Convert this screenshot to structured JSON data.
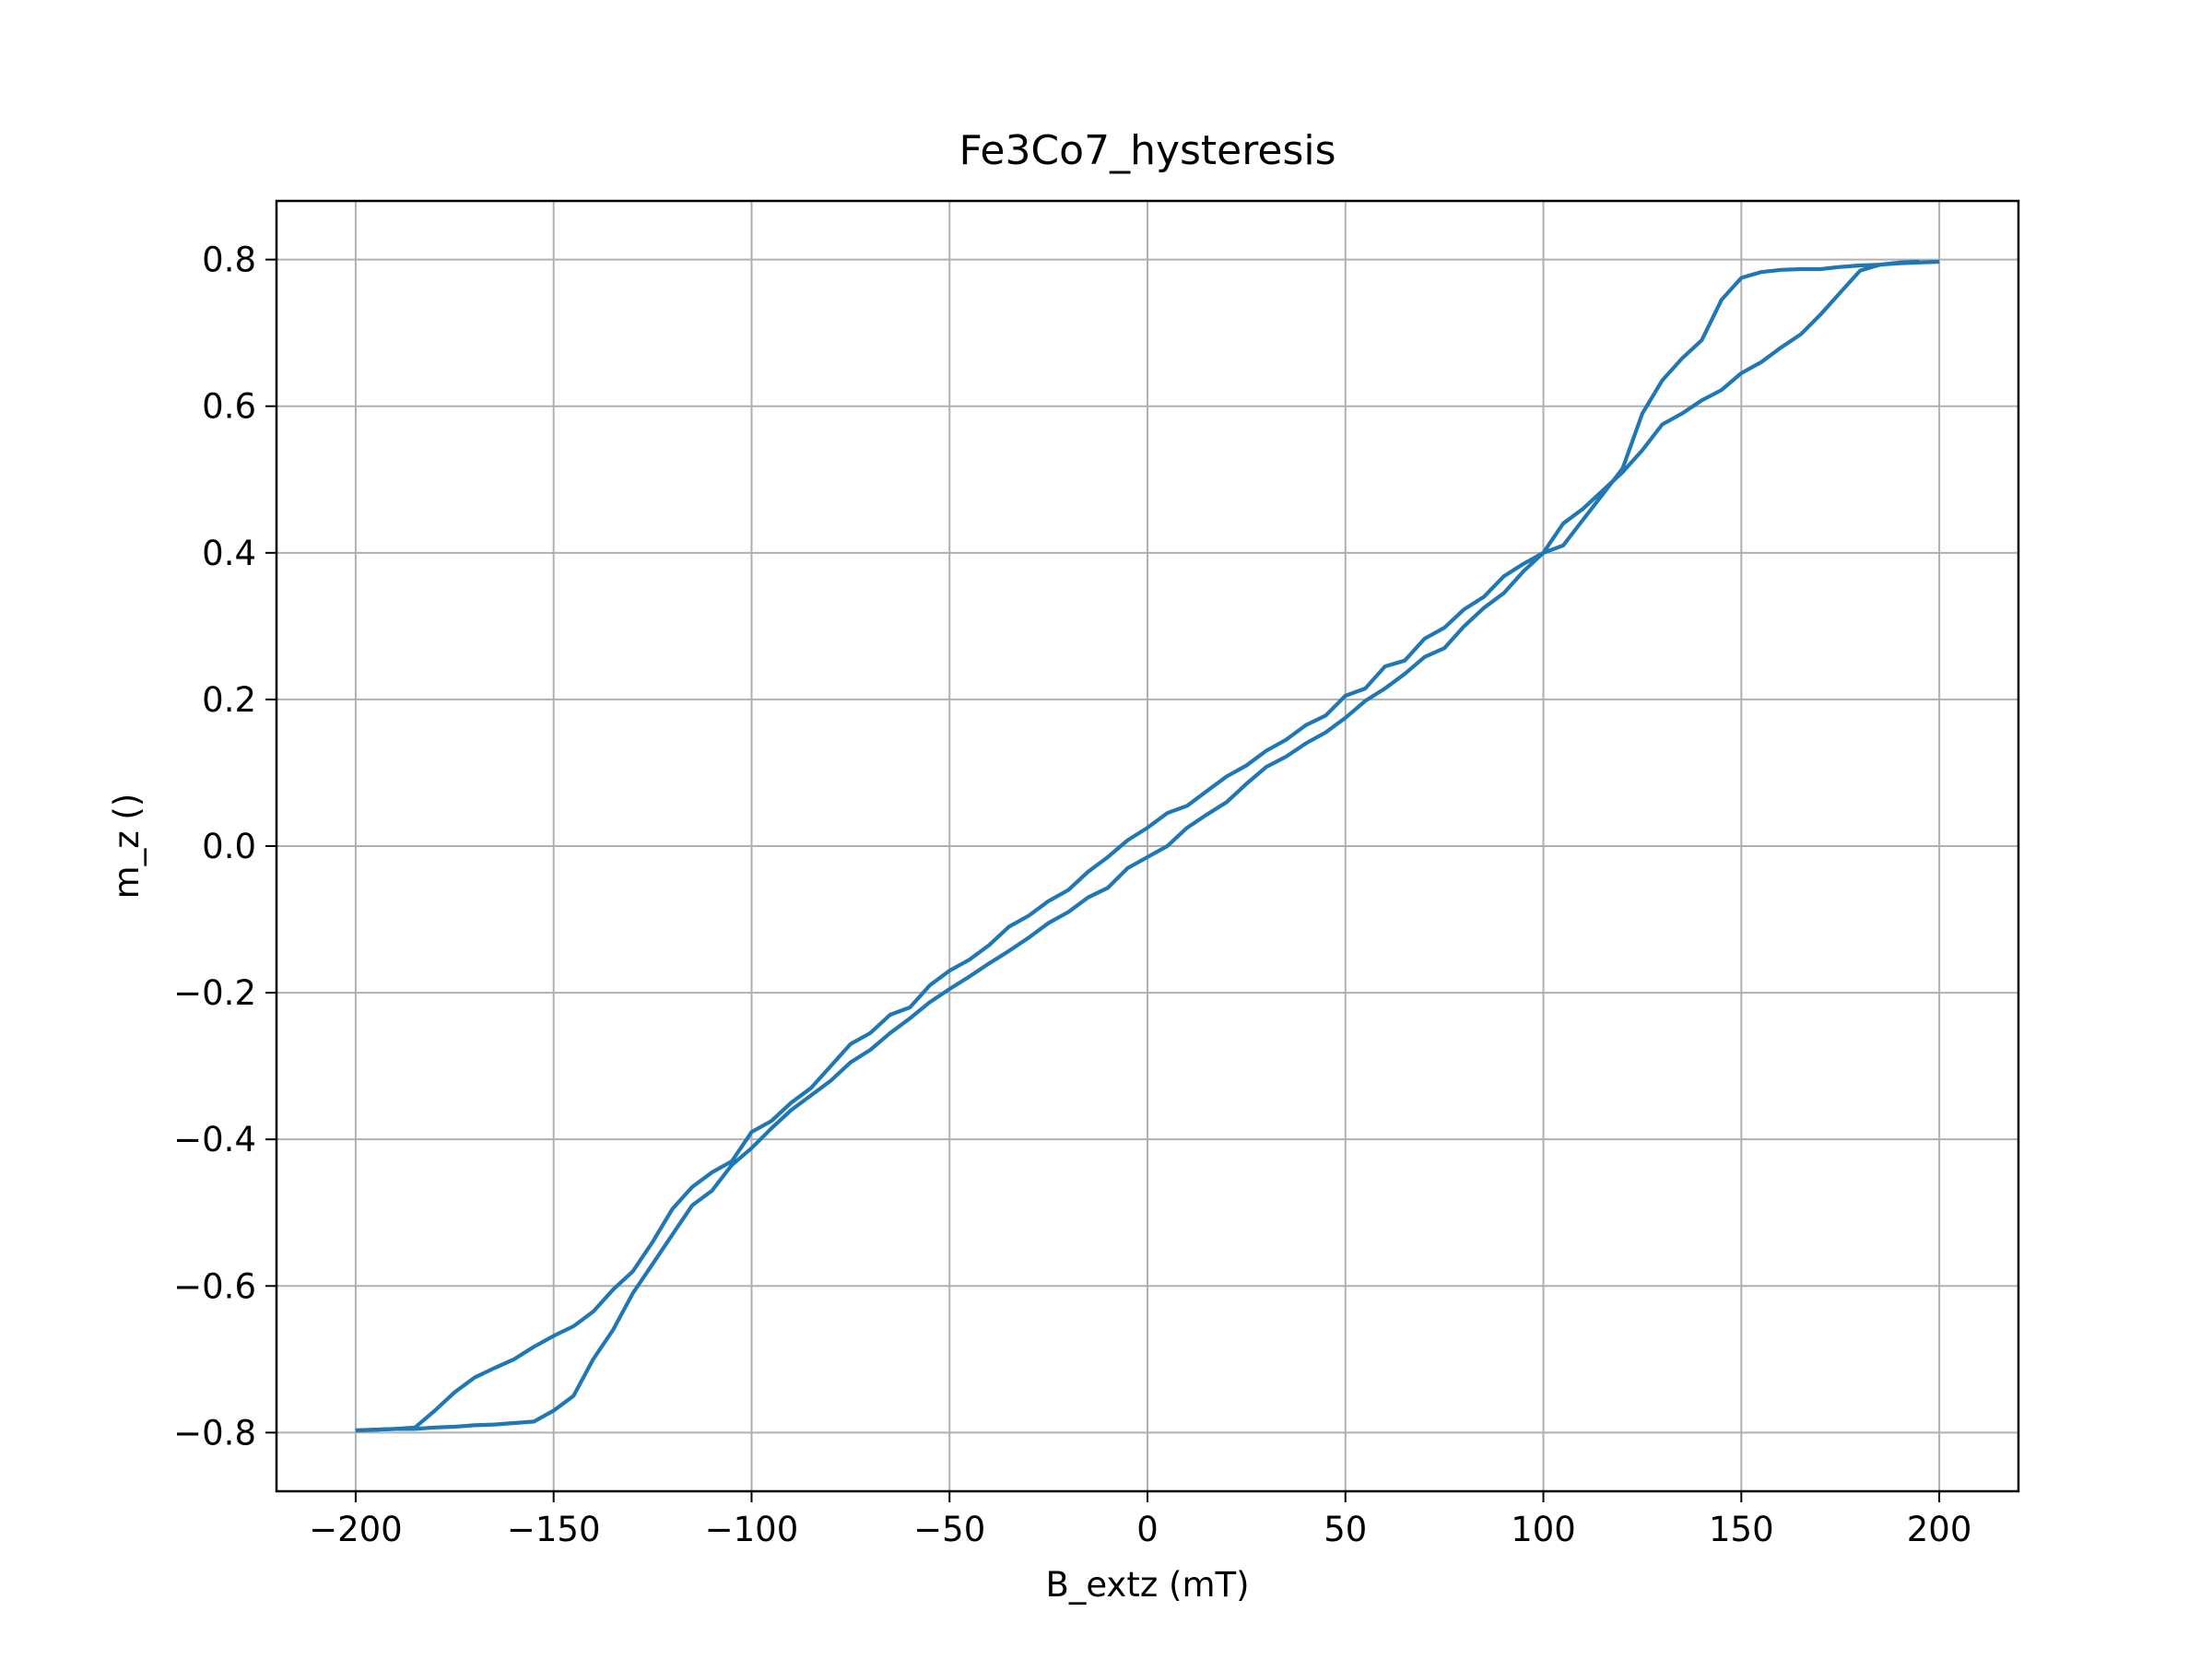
{
  "chart_data": {
    "type": "line",
    "title": "Fe3Co7_hysteresis",
    "xlabel": "B_extz (mT)",
    "ylabel": "m_z ()",
    "xlim": [
      -220,
      220
    ],
    "ylim": [
      -0.88,
      0.88
    ],
    "grid": true,
    "line_color": "#1f77b4",
    "grid_color": "#b0b0b0",
    "x_ticks": [
      -200,
      -150,
      -100,
      -50,
      0,
      50,
      100,
      150,
      200
    ],
    "x_tick_labels": [
      "−200",
      "−150",
      "−100",
      "−50",
      "0",
      "50",
      "100",
      "150",
      "200"
    ],
    "y_ticks": [
      0.8,
      0.6,
      0.4,
      0.2,
      0.0,
      -0.2,
      -0.4,
      -0.6,
      -0.8
    ],
    "y_tick_labels": [
      "0.8",
      "0.6",
      "0.4",
      "0.2",
      "0.0",
      "−0.2",
      "−0.4",
      "−0.6",
      "−0.8"
    ],
    "series": [
      {
        "x": [
          -200,
          -190,
          -185,
          -180,
          -175,
          -170,
          -165,
          -160,
          -155,
          -150,
          -145,
          -140,
          -135,
          -130,
          -125,
          -120,
          -115,
          -110,
          -105,
          -100,
          -95,
          -90,
          -85,
          -80,
          -75,
          -70,
          -65,
          -60,
          -55,
          -50,
          -45,
          -40,
          -35,
          -30,
          -25,
          -20,
          -15,
          -10,
          -5,
          0,
          5,
          10,
          15,
          20,
          25,
          30,
          35,
          40,
          45,
          50,
          55,
          60,
          65,
          70,
          75,
          80,
          85,
          90,
          95,
          100,
          105,
          110,
          115,
          120,
          125,
          130,
          135,
          140,
          145,
          150,
          155,
          160,
          165,
          170,
          175,
          180,
          185,
          190,
          195
        ],
        "y": [
          -0.797,
          -0.795,
          -0.793,
          -0.77,
          -0.745,
          -0.725,
          -0.712,
          -0.7,
          -0.683,
          -0.668,
          -0.655,
          -0.635,
          -0.605,
          -0.58,
          -0.54,
          -0.495,
          -0.465,
          -0.445,
          -0.43,
          -0.39,
          -0.375,
          -0.35,
          -0.33,
          -0.3,
          -0.27,
          -0.255,
          -0.23,
          -0.22,
          -0.19,
          -0.17,
          -0.155,
          -0.135,
          -0.11,
          -0.095,
          -0.075,
          -0.06,
          -0.035,
          -0.015,
          0.008,
          0.025,
          0.045,
          0.055,
          0.075,
          0.095,
          0.11,
          0.13,
          0.145,
          0.165,
          0.178,
          0.205,
          0.215,
          0.245,
          0.253,
          0.283,
          0.298,
          0.323,
          0.34,
          0.368,
          0.385,
          0.4,
          0.44,
          0.46,
          0.485,
          0.51,
          0.54,
          0.575,
          0.59,
          0.608,
          0.622,
          0.645,
          0.66,
          0.68,
          0.698,
          0.725,
          0.755,
          0.785,
          0.793,
          0.796,
          0.797
        ]
      },
      {
        "x": [
          200,
          195,
          190,
          185,
          180,
          175,
          170,
          165,
          160,
          155,
          150,
          145,
          140,
          135,
          130,
          125,
          120,
          115,
          110,
          105,
          100,
          95,
          90,
          85,
          80,
          75,
          70,
          65,
          60,
          55,
          50,
          45,
          40,
          35,
          30,
          25,
          20,
          15,
          10,
          5,
          0,
          -5,
          -10,
          -15,
          -20,
          -25,
          -30,
          -35,
          -40,
          -45,
          -50,
          -55,
          -60,
          -65,
          -70,
          -75,
          -80,
          -85,
          -90,
          -95,
          -100,
          -105,
          -110,
          -115,
          -120,
          -125,
          -130,
          -135,
          -140,
          -145,
          -150,
          -155,
          -160,
          -165,
          -170,
          -175,
          -180,
          -185,
          -190,
          -195,
          -200
        ],
        "y": [
          0.797,
          0.796,
          0.795,
          0.793,
          0.792,
          0.79,
          0.787,
          0.787,
          0.786,
          0.783,
          0.775,
          0.745,
          0.69,
          0.665,
          0.635,
          0.59,
          0.515,
          0.48,
          0.445,
          0.41,
          0.4,
          0.375,
          0.345,
          0.325,
          0.3,
          0.27,
          0.258,
          0.235,
          0.215,
          0.198,
          0.175,
          0.155,
          0.14,
          0.122,
          0.108,
          0.085,
          0.06,
          0.043,
          0.025,
          0.0,
          -0.015,
          -0.03,
          -0.057,
          -0.07,
          -0.09,
          -0.105,
          -0.125,
          -0.143,
          -0.16,
          -0.178,
          -0.195,
          -0.213,
          -0.235,
          -0.255,
          -0.278,
          -0.295,
          -0.32,
          -0.34,
          -0.36,
          -0.385,
          -0.412,
          -0.435,
          -0.47,
          -0.49,
          -0.53,
          -0.57,
          -0.61,
          -0.66,
          -0.7,
          -0.75,
          -0.77,
          -0.785,
          -0.787,
          -0.789,
          -0.79,
          -0.792,
          -0.793,
          -0.795,
          -0.795,
          -0.796,
          -0.797
        ]
      }
    ]
  }
}
